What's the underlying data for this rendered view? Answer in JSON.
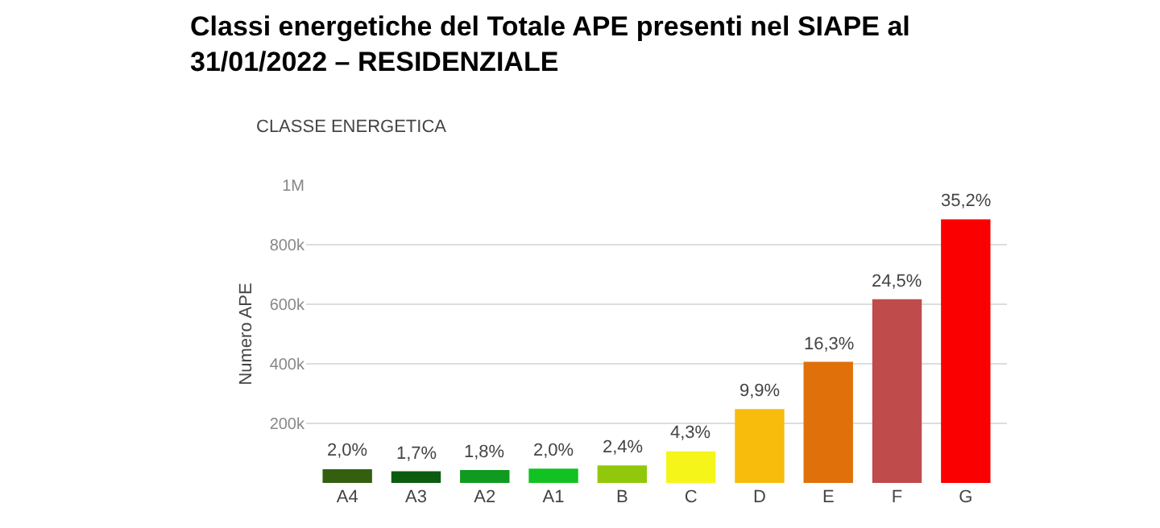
{
  "chart_data": {
    "type": "bar",
    "title": "Classi energetiche del Totale APE presenti nel SIAPE al 31/01/2022 – RESIDENZIALE",
    "subtitle": "CLASSE ENERGETICA",
    "ylabel": "Numero APE",
    "categories": [
      "A4",
      "A3",
      "A2",
      "A1",
      "B",
      "C",
      "D",
      "E",
      "F",
      "G"
    ],
    "values": [
      46000,
      39000,
      43000,
      48000,
      59000,
      106000,
      248000,
      407000,
      617000,
      885000
    ],
    "colors": [
      "#335f0f",
      "#0b5c10",
      "#109a20",
      "#12c222",
      "#92c80c",
      "#f5f51a",
      "#f7bc0c",
      "#e0700a",
      "#c04b4b",
      "#fb0000"
    ],
    "annotations": [
      {
        "text": "2,0%",
        "x": "A4",
        "y": 46000
      },
      {
        "text": "1,7%",
        "x": "A3",
        "y": 39000
      },
      {
        "text": "1,8%",
        "x": "A2",
        "y": 43000
      },
      {
        "text": "2,0%",
        "x": "A1",
        "y": 48000
      },
      {
        "text": "2,4%",
        "x": "B",
        "y": 59000
      },
      {
        "text": "4,3%",
        "x": "C",
        "y": 106000
      },
      {
        "text": "9,9%",
        "x": "D",
        "y": 248000
      },
      {
        "text": "16,3%",
        "x": "E",
        "y": 407000
      },
      {
        "text": "24,5%",
        "x": "F",
        "y": 617000
      },
      {
        "text": "35,2%",
        "x": "G",
        "y": 885000
      }
    ],
    "ylim": [
      0,
      1000000
    ],
    "yticks": [
      {
        "value": 200000,
        "label": "200k"
      },
      {
        "value": 400000,
        "label": "400k"
      },
      {
        "value": 600000,
        "label": "600k"
      },
      {
        "value": 800000,
        "label": "800k"
      },
      {
        "value": 1000000,
        "label": "1M"
      }
    ],
    "grid": "y",
    "legend": false
  }
}
